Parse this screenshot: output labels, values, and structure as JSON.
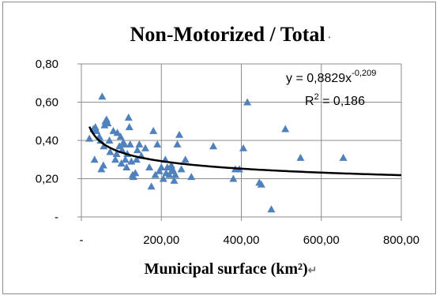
{
  "chart_data": {
    "type": "scatter",
    "title": "Non-Motorized / Total",
    "xlabel": "Municipal surface (km²)",
    "ylabel": "",
    "xlim": [
      0,
      800
    ],
    "ylim": [
      0,
      0.8
    ],
    "x_ticks": [
      "-",
      "200,00",
      "400,00",
      "600,00",
      "800,00"
    ],
    "y_ticks": [
      "-",
      "0,20",
      "0,40",
      "0,60",
      "0,80"
    ],
    "grid": true,
    "legend": "none",
    "marker_color": "#4f81bd",
    "marker": "triangle",
    "trendline": {
      "type": "power",
      "a": 0.8829,
      "b": -0.209,
      "x_start": 20,
      "x_end": 800,
      "color": "#000000",
      "equation_label": "y = 0,8829x",
      "exponent_label": "-0,209",
      "r2_label": "R",
      "r2_sup": "2",
      "r2_value": " = 0,186"
    },
    "points": [
      {
        "x": 20,
        "y": 0.41
      },
      {
        "x": 30,
        "y": 0.46
      },
      {
        "x": 33,
        "y": 0.3
      },
      {
        "x": 35,
        "y": 0.47
      },
      {
        "x": 38,
        "y": 0.45
      },
      {
        "x": 45,
        "y": 0.42
      },
      {
        "x": 48,
        "y": 0.4
      },
      {
        "x": 50,
        "y": 0.25
      },
      {
        "x": 52,
        "y": 0.63
      },
      {
        "x": 55,
        "y": 0.27
      },
      {
        "x": 56,
        "y": 0.37
      },
      {
        "x": 58,
        "y": 0.48
      },
      {
        "x": 60,
        "y": 0.5
      },
      {
        "x": 63,
        "y": 0.51
      },
      {
        "x": 66,
        "y": 0.49
      },
      {
        "x": 70,
        "y": 0.4
      },
      {
        "x": 72,
        "y": 0.34
      },
      {
        "x": 80,
        "y": 0.45
      },
      {
        "x": 85,
        "y": 0.3
      },
      {
        "x": 88,
        "y": 0.33
      },
      {
        "x": 90,
        "y": 0.44
      },
      {
        "x": 95,
        "y": 0.37
      },
      {
        "x": 98,
        "y": 0.42
      },
      {
        "x": 100,
        "y": 0.28
      },
      {
        "x": 102,
        "y": 0.35
      },
      {
        "x": 105,
        "y": 0.39
      },
      {
        "x": 108,
        "y": 0.38
      },
      {
        "x": 110,
        "y": 0.3
      },
      {
        "x": 113,
        "y": 0.26
      },
      {
        "x": 115,
        "y": 0.33
      },
      {
        "x": 118,
        "y": 0.52
      },
      {
        "x": 120,
        "y": 0.47
      },
      {
        "x": 122,
        "y": 0.38
      },
      {
        "x": 125,
        "y": 0.29
      },
      {
        "x": 128,
        "y": 0.22
      },
      {
        "x": 130,
        "y": 0.21
      },
      {
        "x": 135,
        "y": 0.23
      },
      {
        "x": 138,
        "y": 0.3
      },
      {
        "x": 140,
        "y": 0.35
      },
      {
        "x": 145,
        "y": 0.38
      },
      {
        "x": 150,
        "y": 0.32
      },
      {
        "x": 160,
        "y": 0.36
      },
      {
        "x": 170,
        "y": 0.26
      },
      {
        "x": 175,
        "y": 0.16
      },
      {
        "x": 180,
        "y": 0.45
      },
      {
        "x": 185,
        "y": 0.22
      },
      {
        "x": 190,
        "y": 0.38
      },
      {
        "x": 195,
        "y": 0.24
      },
      {
        "x": 200,
        "y": 0.26
      },
      {
        "x": 205,
        "y": 0.2
      },
      {
        "x": 210,
        "y": 0.3
      },
      {
        "x": 212,
        "y": 0.23
      },
      {
        "x": 215,
        "y": 0.26
      },
      {
        "x": 220,
        "y": 0.22
      },
      {
        "x": 225,
        "y": 0.27
      },
      {
        "x": 228,
        "y": 0.25
      },
      {
        "x": 230,
        "y": 0.24
      },
      {
        "x": 232,
        "y": 0.19
      },
      {
        "x": 235,
        "y": 0.22
      },
      {
        "x": 240,
        "y": 0.38
      },
      {
        "x": 245,
        "y": 0.43
      },
      {
        "x": 250,
        "y": 0.25
      },
      {
        "x": 260,
        "y": 0.3
      },
      {
        "x": 275,
        "y": 0.21
      },
      {
        "x": 330,
        "y": 0.37
      },
      {
        "x": 380,
        "y": 0.2
      },
      {
        "x": 385,
        "y": 0.25
      },
      {
        "x": 395,
        "y": 0.25
      },
      {
        "x": 405,
        "y": 0.36
      },
      {
        "x": 415,
        "y": 0.6
      },
      {
        "x": 445,
        "y": 0.18
      },
      {
        "x": 450,
        "y": 0.17
      },
      {
        "x": 475,
        "y": 0.04
      },
      {
        "x": 510,
        "y": 0.46
      },
      {
        "x": 548,
        "y": 0.31
      },
      {
        "x": 655,
        "y": 0.31
      }
    ]
  },
  "marks": {
    "title_mark": "·",
    "xlabel_mark": "↵"
  }
}
